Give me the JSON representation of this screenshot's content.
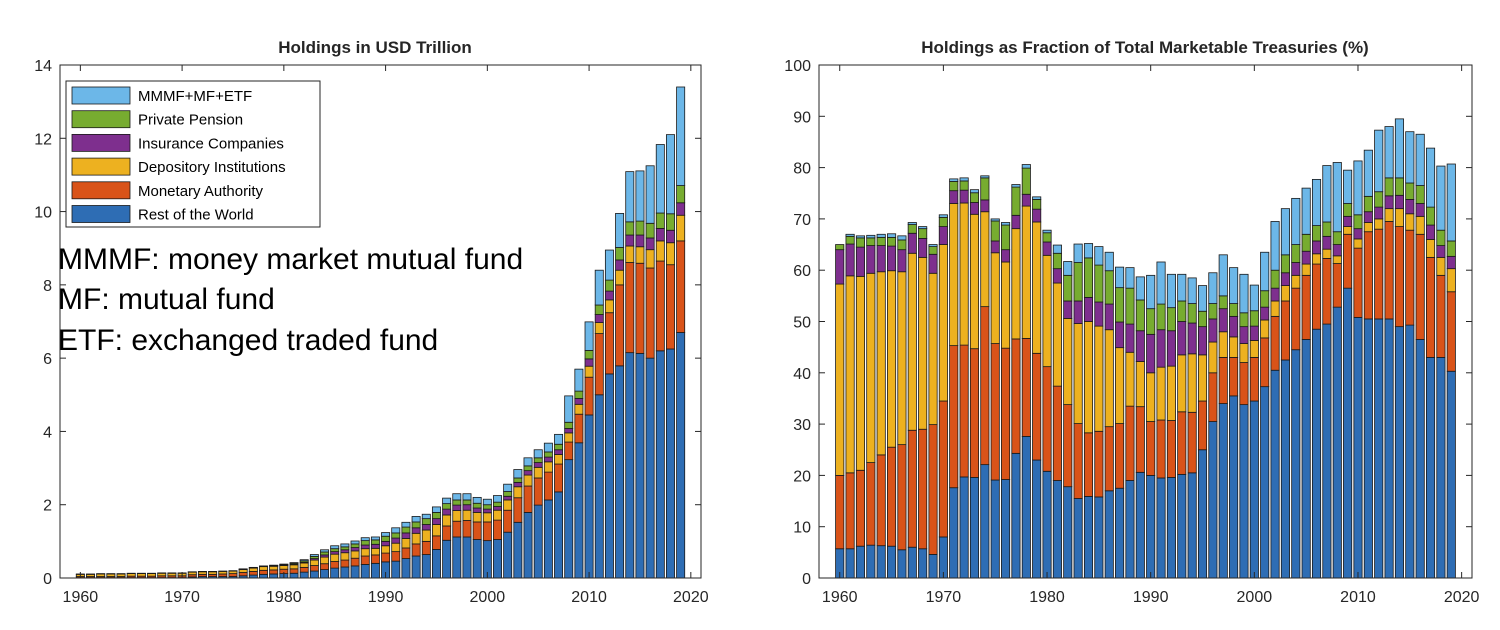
{
  "chart_data": [
    {
      "type": "stacked-bar",
      "title": "Holdings in USD Trillion",
      "xlabel": "",
      "ylabel": "",
      "xlim": [
        1958,
        2021
      ],
      "ylim": [
        0,
        14
      ],
      "xticks": [
        1960,
        1970,
        1980,
        1990,
        2000,
        2010,
        2020
      ],
      "yticks": [
        0,
        2,
        4,
        6,
        8,
        10,
        12,
        14
      ],
      "legend": "top-left",
      "grid": false,
      "x": [
        1960,
        1961,
        1962,
        1963,
        1964,
        1965,
        1966,
        1967,
        1968,
        1969,
        1970,
        1971,
        1972,
        1973,
        1974,
        1975,
        1976,
        1977,
        1978,
        1979,
        1980,
        1981,
        1982,
        1983,
        1984,
        1985,
        1986,
        1987,
        1988,
        1989,
        1990,
        1991,
        1992,
        1993,
        1994,
        1995,
        1996,
        1997,
        1998,
        1999,
        2000,
        2001,
        2002,
        2003,
        2004,
        2005,
        2006,
        2007,
        2008,
        2009,
        2010,
        2011,
        2012,
        2013,
        2014,
        2015,
        2016,
        2017,
        2018,
        2019
      ],
      "series": [
        {
          "name": "Rest of the World",
          "color": "#2E6DB4",
          "values": [
            0.01,
            0.01,
            0.01,
            0.01,
            0.01,
            0.01,
            0.01,
            0.01,
            0.01,
            0.01,
            0.01,
            0.03,
            0.04,
            0.04,
            0.04,
            0.04,
            0.06,
            0.08,
            0.1,
            0.11,
            0.12,
            0.13,
            0.16,
            0.19,
            0.23,
            0.27,
            0.3,
            0.33,
            0.37,
            0.4,
            0.44,
            0.46,
            0.53,
            0.6,
            0.64,
            0.78,
            1.03,
            1.12,
            1.12,
            1.05,
            1.02,
            1.05,
            1.25,
            1.52,
            1.79,
            1.99,
            2.13,
            2.35,
            3.23,
            3.69,
            4.45,
            5.0,
            5.57,
            5.79,
            6.15,
            6.13,
            6.0,
            6.2,
            6.25,
            6.7
          ]
        },
        {
          "name": "Monetary Authority",
          "color": "#D95319",
          "values": [
            0.03,
            0.03,
            0.03,
            0.03,
            0.03,
            0.04,
            0.04,
            0.04,
            0.05,
            0.05,
            0.05,
            0.06,
            0.06,
            0.06,
            0.07,
            0.08,
            0.09,
            0.1,
            0.11,
            0.11,
            0.12,
            0.12,
            0.13,
            0.15,
            0.16,
            0.18,
            0.19,
            0.21,
            0.23,
            0.23,
            0.24,
            0.26,
            0.29,
            0.33,
            0.36,
            0.37,
            0.39,
            0.43,
            0.45,
            0.48,
            0.51,
            0.53,
            0.6,
            0.67,
            0.72,
            0.74,
            0.76,
            0.76,
            0.48,
            0.78,
            1.03,
            1.67,
            1.67,
            2.21,
            2.46,
            2.46,
            2.46,
            2.45,
            2.3,
            2.5
          ]
        },
        {
          "name": "Depository Institutions",
          "color": "#EDB120",
          "values": [
            0.06,
            0.06,
            0.07,
            0.07,
            0.07,
            0.07,
            0.07,
            0.07,
            0.07,
            0.07,
            0.07,
            0.07,
            0.07,
            0.07,
            0.07,
            0.07,
            0.08,
            0.09,
            0.1,
            0.1,
            0.1,
            0.11,
            0.12,
            0.15,
            0.18,
            0.2,
            0.2,
            0.2,
            0.2,
            0.18,
            0.2,
            0.23,
            0.26,
            0.29,
            0.31,
            0.31,
            0.3,
            0.29,
            0.28,
            0.26,
            0.25,
            0.27,
            0.28,
            0.3,
            0.3,
            0.29,
            0.28,
            0.26,
            0.25,
            0.27,
            0.3,
            0.3,
            0.35,
            0.4,
            0.45,
            0.45,
            0.5,
            0.55,
            0.6,
            0.7
          ]
        },
        {
          "name": "Insurance Companies",
          "color": "#7E2F8E",
          "values": [
            0.01,
            0.01,
            0.01,
            0.01,
            0.01,
            0.01,
            0.01,
            0.01,
            0.01,
            0.01,
            0.01,
            0.01,
            0.01,
            0.01,
            0.01,
            0.01,
            0.01,
            0.01,
            0.01,
            0.01,
            0.01,
            0.01,
            0.02,
            0.04,
            0.06,
            0.07,
            0.08,
            0.09,
            0.1,
            0.11,
            0.12,
            0.14,
            0.15,
            0.15,
            0.15,
            0.16,
            0.16,
            0.15,
            0.15,
            0.12,
            0.1,
            0.1,
            0.1,
            0.12,
            0.12,
            0.13,
            0.13,
            0.13,
            0.12,
            0.16,
            0.2,
            0.22,
            0.24,
            0.28,
            0.3,
            0.32,
            0.32,
            0.34,
            0.34,
            0.34
          ]
        },
        {
          "name": "Private Pension",
          "color": "#77AC30",
          "values": [
            0.0,
            0.0,
            0.0,
            0.0,
            0.0,
            0.0,
            0.0,
            0.0,
            0.0,
            0.0,
            0.0,
            0.0,
            0.0,
            0.0,
            0.0,
            0.0,
            0.01,
            0.01,
            0.01,
            0.01,
            0.02,
            0.03,
            0.04,
            0.06,
            0.08,
            0.08,
            0.08,
            0.1,
            0.12,
            0.12,
            0.14,
            0.14,
            0.16,
            0.16,
            0.16,
            0.17,
            0.15,
            0.14,
            0.13,
            0.13,
            0.12,
            0.12,
            0.13,
            0.12,
            0.13,
            0.13,
            0.14,
            0.15,
            0.17,
            0.2,
            0.23,
            0.26,
            0.3,
            0.34,
            0.36,
            0.38,
            0.4,
            0.42,
            0.45,
            0.47
          ]
        },
        {
          "name": "MMMF+MF+ETF",
          "color": "#6CB7E8",
          "values": [
            0.0,
            0.0,
            0.0,
            0.0,
            0.0,
            0.0,
            0.0,
            0.0,
            0.0,
            0.0,
            0.0,
            0.0,
            0.0,
            0.0,
            0.0,
            0.0,
            0.0,
            0.0,
            0.0,
            0.01,
            0.01,
            0.02,
            0.03,
            0.05,
            0.06,
            0.08,
            0.08,
            0.08,
            0.08,
            0.08,
            0.1,
            0.14,
            0.13,
            0.15,
            0.12,
            0.15,
            0.15,
            0.17,
            0.17,
            0.16,
            0.15,
            0.18,
            0.2,
            0.23,
            0.22,
            0.22,
            0.24,
            0.27,
            0.72,
            0.6,
            0.78,
            0.95,
            0.82,
            0.93,
            1.37,
            1.37,
            1.57,
            1.87,
            2.16,
            2.69
          ]
        }
      ]
    },
    {
      "type": "stacked-bar",
      "title": "Holdings as Fraction of Total Marketable Treasuries (%)",
      "xlabel": "",
      "ylabel": "",
      "xlim": [
        1958,
        2021
      ],
      "ylim": [
        0,
        100
      ],
      "xticks": [
        1960,
        1970,
        1980,
        1990,
        2000,
        2010,
        2020
      ],
      "yticks": [
        0,
        10,
        20,
        30,
        40,
        50,
        60,
        70,
        80,
        90,
        100
      ],
      "grid": false,
      "x": [
        1960,
        1961,
        1962,
        1963,
        1964,
        1965,
        1966,
        1967,
        1968,
        1969,
        1970,
        1971,
        1972,
        1973,
        1974,
        1975,
        1976,
        1977,
        1978,
        1979,
        1980,
        1981,
        1982,
        1983,
        1984,
        1985,
        1986,
        1987,
        1988,
        1989,
        1990,
        1991,
        1992,
        1993,
        1994,
        1995,
        1996,
        1997,
        1998,
        1999,
        2000,
        2001,
        2002,
        2003,
        2004,
        2005,
        2006,
        2007,
        2008,
        2009,
        2010,
        2011,
        2012,
        2013,
        2014,
        2015,
        2016,
        2017,
        2018,
        2019
      ],
      "series": [
        {
          "name": "Rest of the World",
          "color": "#2E6DB4",
          "values": [
            5.7,
            5.7,
            6.2,
            6.4,
            6.3,
            6.2,
            5.5,
            6.0,
            5.7,
            4.6,
            8.0,
            17.6,
            19.7,
            19.6,
            22.1,
            19.1,
            19.2,
            24.3,
            27.6,
            23.0,
            20.8,
            19.0,
            17.8,
            15.5,
            15.9,
            15.8,
            17.0,
            17.5,
            19.0,
            20.6,
            20.0,
            19.5,
            19.6,
            20.2,
            20.5,
            25.0,
            30.5,
            34.0,
            35.5,
            33.8,
            34.5,
            37.3,
            40.5,
            42.5,
            44.5,
            46.5,
            48.5,
            49.5,
            52.8,
            56.5,
            50.8,
            50.5,
            50.5,
            50.5,
            49.0,
            49.3,
            46.5,
            43.0,
            43.0,
            40.3
          ]
        },
        {
          "name": "Monetary Authority",
          "color": "#D95319",
          "values": [
            14.3,
            14.8,
            14.8,
            16.1,
            17.7,
            19.3,
            20.5,
            22.8,
            23.3,
            25.3,
            26.5,
            27.7,
            25.7,
            25.1,
            30.8,
            26.6,
            25.6,
            22.3,
            19.1,
            20.8,
            20.4,
            18.4,
            16.0,
            14.6,
            12.4,
            12.8,
            12.5,
            12.6,
            14.5,
            12.8,
            10.5,
            11.3,
            11.1,
            12.2,
            11.8,
            9.5,
            9.5,
            9.0,
            7.5,
            8.2,
            8.5,
            9.5,
            10.5,
            11.5,
            12.0,
            12.5,
            12.7,
            12.8,
            8.5,
            10.5,
            13.5,
            17.0,
            17.5,
            19.0,
            19.5,
            18.5,
            20.5,
            19.5,
            16.0,
            15.5
          ]
        },
        {
          "name": "Depository Institutions",
          "color": "#EDB120",
          "values": [
            37.3,
            38.4,
            37.8,
            36.9,
            35.7,
            34.4,
            33.7,
            34.5,
            33.5,
            29.5,
            30.5,
            27.7,
            27.7,
            26.2,
            18.5,
            17.7,
            16.8,
            21.5,
            25.8,
            25.6,
            21.7,
            20.1,
            16.8,
            19.5,
            21.7,
            20.5,
            18.9,
            14.8,
            10.5,
            8.8,
            9.5,
            10.3,
            10.6,
            11.1,
            11.4,
            9.0,
            6.0,
            5.0,
            4.0,
            3.7,
            3.3,
            3.5,
            3.0,
            3.0,
            2.5,
            2.2,
            2.0,
            1.8,
            1.5,
            1.5,
            1.8,
            1.8,
            2.0,
            2.5,
            3.5,
            3.2,
            3.5,
            3.5,
            3.5,
            4.5
          ]
        },
        {
          "name": "Insurance Companies",
          "color": "#7E2F8E",
          "values": [
            6.7,
            6.2,
            5.7,
            5.4,
            5.1,
            4.8,
            4.3,
            3.9,
            3.7,
            3.7,
            3.5,
            2.5,
            2.5,
            2.3,
            2.3,
            2.3,
            2.4,
            2.6,
            2.3,
            2.5,
            2.6,
            2.8,
            3.4,
            4.4,
            4.7,
            4.7,
            5.0,
            5.0,
            5.5,
            6.0,
            7.5,
            7.3,
            6.9,
            6.5,
            6.0,
            5.5,
            4.5,
            4.5,
            4.0,
            3.3,
            2.8,
            2.5,
            2.5,
            2.5,
            2.5,
            2.5,
            2.5,
            2.5,
            2.2,
            2.0,
            2.0,
            2.1,
            2.3,
            2.5,
            2.6,
            2.8,
            2.5,
            2.8,
            2.3,
            2.4
          ]
        },
        {
          "name": "Private Pension",
          "color": "#77AC30",
          "values": [
            1.0,
            1.5,
            1.8,
            1.5,
            1.6,
            1.7,
            1.9,
            1.7,
            1.9,
            1.5,
            1.8,
            1.8,
            1.8,
            1.9,
            4.3,
            3.9,
            4.8,
            5.5,
            5.1,
            1.9,
            1.8,
            3.0,
            5.0,
            7.5,
            7.7,
            7.2,
            6.5,
            6.7,
            7.0,
            6.0,
            5.0,
            5.0,
            4.5,
            4.0,
            3.8,
            3.0,
            3.0,
            2.5,
            2.5,
            2.7,
            3.0,
            3.2,
            3.5,
            3.5,
            3.5,
            3.3,
            3.0,
            2.8,
            2.5,
            2.5,
            2.7,
            3.0,
            3.0,
            3.5,
            3.4,
            3.2,
            3.5,
            3.5,
            3.0,
            3.0
          ]
        },
        {
          "name": "MMMF+MF+ETF",
          "color": "#6CB7E8",
          "values": [
            0.0,
            0.4,
            0.4,
            0.5,
            0.6,
            0.7,
            0.8,
            0.4,
            0.4,
            0.4,
            0.5,
            0.5,
            0.6,
            0.6,
            0.4,
            0.4,
            0.5,
            0.5,
            0.7,
            0.5,
            0.5,
            1.6,
            2.7,
            3.6,
            2.8,
            3.6,
            3.6,
            4.0,
            4.0,
            4.5,
            6.5,
            8.2,
            6.5,
            5.2,
            5.0,
            5.0,
            6.0,
            8.0,
            7.0,
            7.5,
            5.0,
            7.5,
            9.5,
            9.0,
            9.0,
            9.0,
            9.0,
            11.0,
            13.5,
            6.5,
            10.5,
            9.0,
            12.0,
            10.0,
            11.5,
            10.0,
            10.0,
            11.5,
            12.5,
            15.0
          ]
        }
      ]
    }
  ],
  "annotations": [
    "MMMF: money market mutual fund",
    "MF: mutual fund",
    "ETF: exchanged traded fund"
  ]
}
